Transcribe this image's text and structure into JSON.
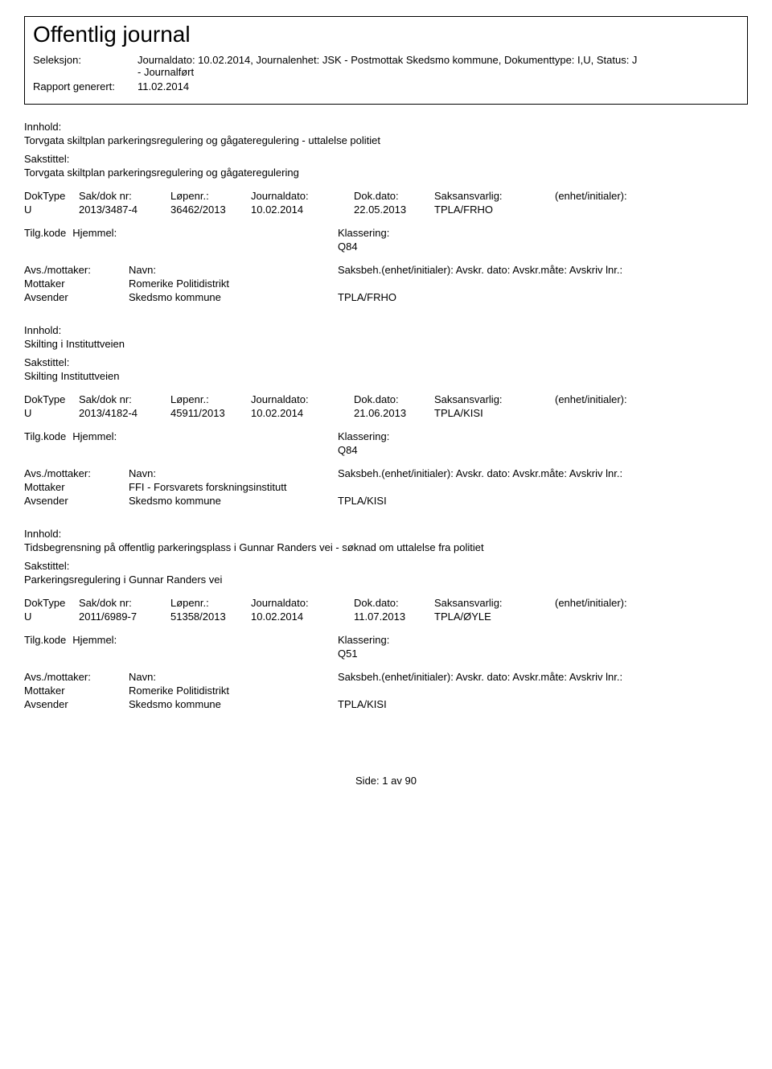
{
  "header": {
    "title": "Offentlig journal",
    "seleksjon_label": "Seleksjon:",
    "seleksjon_value": "Journaldato: 10.02.2014, Journalenhet: JSK - Postmottak Skedsmo kommune, Dokumenttype: I,U, Status: J",
    "seleksjon_sub": "- Journalført",
    "rapport_label": "Rapport generert:",
    "rapport_value": "11.02.2014"
  },
  "labels": {
    "innhold": "Innhold:",
    "sakstittel": "Sakstittel:",
    "doktype": "DokType",
    "sakdoknr": "Sak/dok nr:",
    "lopenr": "Løpenr.:",
    "journaldato": "Journaldato:",
    "dokdato": "Dok.dato:",
    "saksansvarlig": "Saksansvarlig:",
    "enhet": "(enhet/initialer):",
    "tilgkode": "Tilg.kode",
    "hjemmel": "Hjemmel:",
    "klassering": "Klassering:",
    "avsmottaker": "Avs./mottaker:",
    "navn": "Navn:",
    "saksbeh": "Saksbeh.(enhet/initialer):",
    "avskr": "Avskr. dato: Avskr.måte: Avskriv lnr.:",
    "mottaker": "Mottaker",
    "avsender": "Avsender"
  },
  "records": [
    {
      "innhold": "Torvgata skiltplan parkeringsregulering og gågateregulering - uttalelse politiet",
      "sakstittel": "Torvgata skiltplan parkeringsregulering og gågateregulering",
      "doktype": "U",
      "sakdok": "2013/3487-4",
      "lopenr": "36462/2013",
      "jdato": "10.02.2014",
      "ddato": "22.05.2013",
      "saksansv": "TPLA/FRHO",
      "enhet": "",
      "klassering": "Q84",
      "mottaker_name": "Romerike Politidistrikt",
      "avsender_name": "Skedsmo kommune",
      "avsender_extra": "TPLA/FRHO"
    },
    {
      "innhold": "Skilting i Instituttveien",
      "sakstittel": "Skilting Instituttveien",
      "doktype": "U",
      "sakdok": "2013/4182-4",
      "lopenr": "45911/2013",
      "jdato": "10.02.2014",
      "ddato": "21.06.2013",
      "saksansv": "TPLA/KISI",
      "enhet": "",
      "klassering": "Q84",
      "mottaker_name": "FFI - Forsvarets forskningsinstitutt",
      "avsender_name": "Skedsmo kommune",
      "avsender_extra": "TPLA/KISI"
    },
    {
      "innhold": "Tidsbegrensning på offentlig parkeringsplass i Gunnar Randers vei - søknad om uttalelse fra politiet",
      "sakstittel": "Parkeringsregulering i Gunnar Randers vei",
      "doktype": "U",
      "sakdok": "2011/6989-7",
      "lopenr": "51358/2013",
      "jdato": "10.02.2014",
      "ddato": "11.07.2013",
      "saksansv": "TPLA/ØYLE",
      "enhet": "",
      "klassering": "Q51",
      "mottaker_name": "Romerike Politidistrikt",
      "avsender_name": "Skedsmo kommune",
      "avsender_extra": "TPLA/KISI"
    }
  ],
  "footer": {
    "side_label": "Side:",
    "page_current": "1",
    "page_sep": "av",
    "page_total": "90"
  }
}
